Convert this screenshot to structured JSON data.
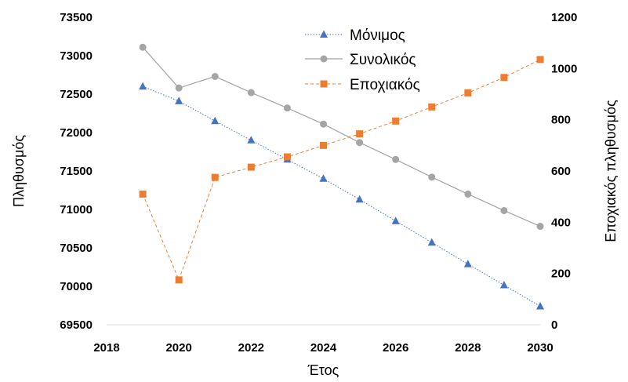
{
  "chart_data": {
    "type": "line",
    "x": [
      2019,
      2020,
      2021,
      2022,
      2023,
      2024,
      2025,
      2026,
      2027,
      2028,
      2029,
      2030
    ],
    "xlabel": "Έτος",
    "ylabel": "Πληθυσμός",
    "y2label": "Εποχιακός πληθυσμός",
    "xlim": [
      2018,
      2030
    ],
    "xticks": [
      "2018",
      "2020",
      "2022",
      "2024",
      "2026",
      "2028",
      "2030"
    ],
    "ylim": [
      69500,
      73500
    ],
    "yticks": [
      "73500",
      "73000",
      "72500",
      "72000",
      "71500",
      "71000",
      "70500",
      "70000",
      "69500"
    ],
    "y2lim": [
      0,
      1200
    ],
    "y2ticks": [
      "1200",
      "1000",
      "800",
      "600",
      "400",
      "200",
      "0"
    ],
    "grid": false,
    "legend_position": "top-center",
    "series": [
      {
        "name": "Μόνιμος",
        "axis": "left",
        "color": "#4472C4",
        "marker": "triangle",
        "line": "dotted",
        "values": [
          72600,
          72410,
          72150,
          71900,
          71650,
          71400,
          71130,
          70850,
          70570,
          70290,
          70015,
          69740
        ]
      },
      {
        "name": "Συνολικός",
        "axis": "left",
        "color": "#A5A5A5",
        "marker": "circle",
        "line": "solid",
        "values": [
          73110,
          72580,
          72730,
          72520,
          72320,
          72110,
          71870,
          71650,
          71420,
          71200,
          70985,
          70780
        ]
      },
      {
        "name": "Εποχιακός",
        "axis": "right",
        "color": "#ED7D31",
        "marker": "square",
        "line": "dashed",
        "values": [
          510,
          175,
          575,
          615,
          655,
          700,
          745,
          795,
          850,
          905,
          965,
          1035
        ]
      }
    ]
  }
}
